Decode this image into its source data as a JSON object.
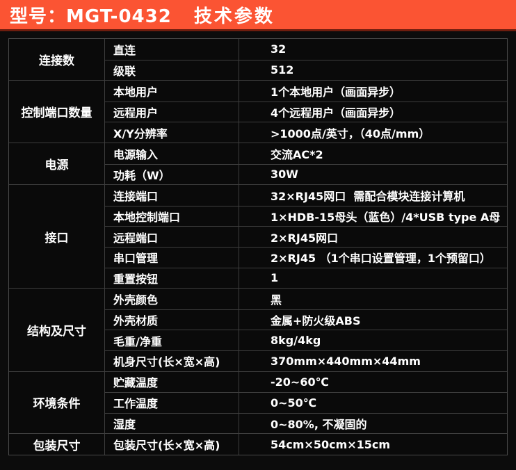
{
  "header": {
    "model_label": "型号：MGT-0432",
    "title": "技术参数"
  },
  "colors": {
    "header_background": "#fb5433",
    "header_bottom_edge": "#6e1d0e",
    "table_background": "#0a0a0a",
    "grid_line": "#3e3e3e",
    "text": "#ffffff"
  },
  "table": {
    "groups": [
      {
        "category": "连接数",
        "rows": [
          {
            "label": "直连",
            "value": "32"
          },
          {
            "label": "级联",
            "value": "512"
          }
        ]
      },
      {
        "category": "控制端口数量",
        "rows": [
          {
            "label": "本地用户",
            "value": "1个本地用户（画面异步）"
          },
          {
            "label": "远程用户",
            "value": "4个远程用户（画面异步）"
          },
          {
            "label": "X/Y分辨率",
            "value": ">1000点/英寸，（40点/mm）"
          }
        ]
      },
      {
        "category": "电源",
        "rows": [
          {
            "label": "电源输入",
            "value": "交流AC*2"
          },
          {
            "label": "功耗（W）",
            "value": "30W"
          }
        ]
      },
      {
        "category": "接口",
        "rows": [
          {
            "label": "连接端口",
            "value": "32×RJ45网口  需配合模块连接计算机"
          },
          {
            "label": "本地控制端口",
            "value": "1×HDB-15母头（蓝色）/4*USB type A母"
          },
          {
            "label": "远程端口",
            "value": "2×RJ45网口"
          },
          {
            "label": "串口管理",
            "value": "2×RJ45 （1个串口设置管理，1个预留口）"
          },
          {
            "label": "重置按钮",
            "value": "1"
          }
        ]
      },
      {
        "category": "结构及尺寸",
        "rows": [
          {
            "label": "外壳颜色",
            "value": "黑"
          },
          {
            "label": "外壳材质",
            "value": "金属+防火级ABS"
          },
          {
            "label": "毛重/净重",
            "value": "8kg/4kg"
          },
          {
            "label": "机身尺寸(长×宽×高)",
            "value": "370mm×440mm×44mm"
          }
        ]
      },
      {
        "category": "环境条件",
        "rows": [
          {
            "label": "贮藏温度",
            "value": "-20~60℃"
          },
          {
            "label": "工作温度",
            "value": "0~50℃"
          },
          {
            "label": "湿度",
            "value": "0~80%, 不凝固的"
          }
        ]
      },
      {
        "category": "包装尺寸",
        "rows": [
          {
            "label": "包装尺寸(长×宽×高)",
            "value": "54cm×50cm×15cm"
          }
        ]
      }
    ]
  }
}
